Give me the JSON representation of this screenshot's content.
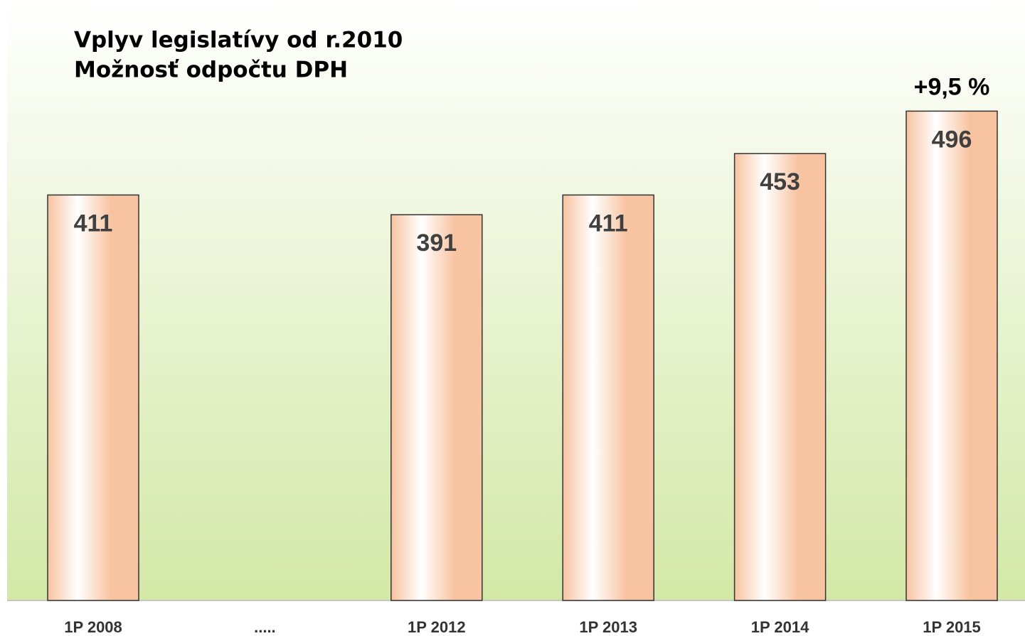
{
  "chart_data": {
    "type": "bar",
    "title": "Vplyv legislatívy od r.2010",
    "subtitle": "Možnosť odpočtu DPH",
    "annotation": "+9,5 %",
    "categories": [
      "1P 2008",
      ".....",
      "1P 2012",
      "1P 2013",
      "1P 2014",
      "1P 2015"
    ],
    "values": [
      411,
      null,
      391,
      411,
      453,
      496
    ],
    "color": "#f8c4a0",
    "ylim": [
      0,
      600
    ]
  }
}
